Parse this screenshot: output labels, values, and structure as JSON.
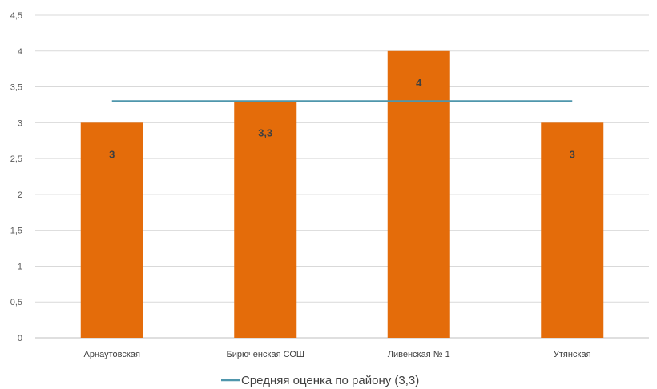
{
  "chart_data": {
    "type": "bar",
    "categories": [
      "Арнаутовская",
      "Бирюченская СОШ",
      "Ливенская  № 1",
      "Утянская"
    ],
    "values": [
      3,
      3.3,
      4,
      3
    ],
    "data_labels": [
      "3",
      "3,3",
      "4",
      "3"
    ],
    "ylim": [
      0,
      4.5
    ],
    "yticks": [
      "0",
      "0,5",
      "1",
      "1,5",
      "2",
      "2,5",
      "3",
      "3,5",
      "4",
      "4,5"
    ],
    "grid": true,
    "reference_line": {
      "name": "Средняя оценка по району (3,3)",
      "value": 3.3
    },
    "legend_position": "bottom",
    "colors": {
      "bar": "#E46C0A",
      "reference_line": "#4F96AC",
      "grid": "#D9D9D9"
    }
  }
}
